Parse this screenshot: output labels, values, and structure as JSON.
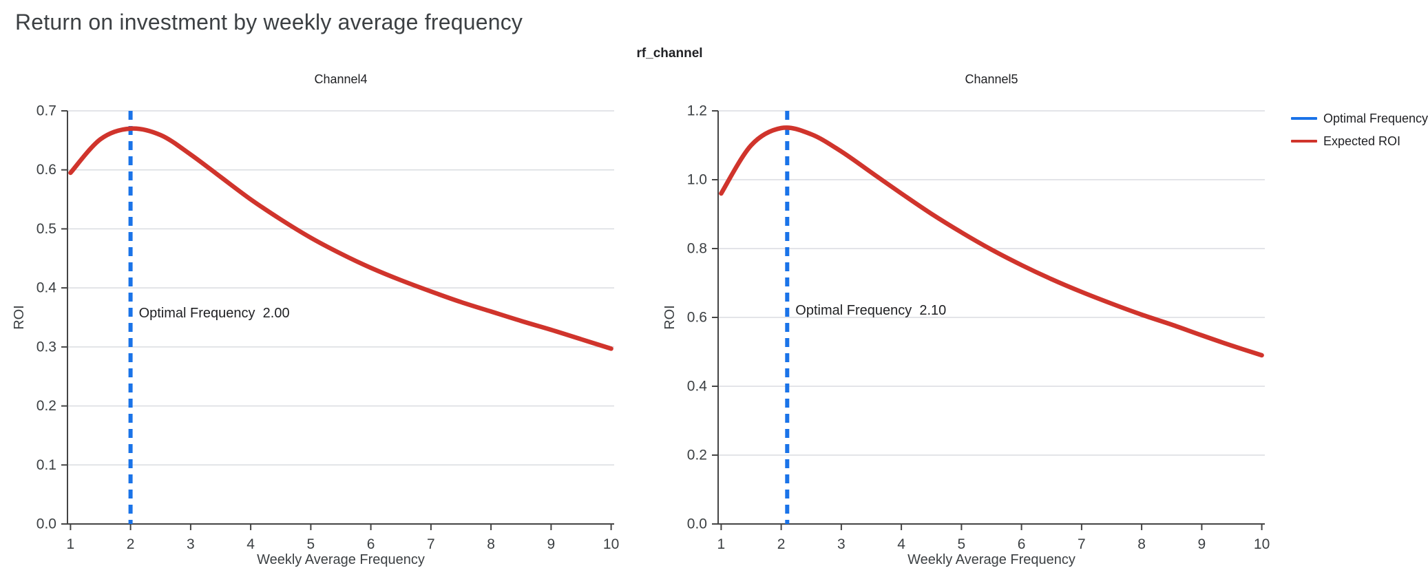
{
  "page": {
    "title": "Return on investment by weekly average frequency"
  },
  "chart_data": {
    "type": "line",
    "title": "rf_channel",
    "facet_by": "rf_channel",
    "legend_position": "right",
    "grid": "horizontal-only",
    "style": {
      "expected_roi_color": "#D0342C",
      "optimal_frequency_color": "#1A73E8",
      "grid_color": "#DADCE0",
      "axis_color": "#444444",
      "tick_text_color": "#3C4043",
      "annotation_text_color": "#202124"
    },
    "legend": [
      {
        "label": "Optimal Frequency",
        "color": "#1A73E8"
      },
      {
        "label": "Expected ROI",
        "color": "#D0342C"
      }
    ],
    "subplots": [
      {
        "title": "Channel4",
        "xlabel": "Weekly Average Frequency",
        "ylabel": "ROI",
        "xlim": [
          0.95,
          10.05
        ],
        "ylim": [
          0,
          0.7
        ],
        "xticks": [
          1,
          2,
          3,
          4,
          5,
          6,
          7,
          8,
          9,
          10
        ],
        "ytick_values": [
          0,
          0.1,
          0.2,
          0.3,
          0.4,
          0.5,
          0.6,
          0.7
        ],
        "ytick_labels": [
          "0.0",
          "0.1",
          "0.2",
          "0.3",
          "0.4",
          "0.5",
          "0.6",
          "0.7"
        ],
        "optimal_frequency": 2.0,
        "annotation": {
          "x": 2.0,
          "y": 0.357,
          "label": "Optimal Frequency",
          "value": "2.00"
        },
        "series": {
          "name": "Expected ROI",
          "x": [
            1,
            1.5,
            2,
            2.5,
            3,
            3.5,
            4,
            4.5,
            5,
            5.5,
            6,
            6.5,
            7,
            7.5,
            8,
            8.5,
            9,
            9.5,
            10
          ],
          "y": [
            0.595,
            0.652,
            0.67,
            0.659,
            0.626,
            0.588,
            0.55,
            0.516,
            0.485,
            0.458,
            0.434,
            0.413,
            0.394,
            0.376,
            0.36,
            0.344,
            0.329,
            0.313,
            0.297
          ]
        }
      },
      {
        "title": "Channel5",
        "xlabel": "Weekly Average Frequency",
        "ylabel": "ROI",
        "xlim": [
          0.95,
          10.05
        ],
        "ylim": [
          0,
          1.2
        ],
        "xticks": [
          1,
          2,
          3,
          4,
          5,
          6,
          7,
          8,
          9,
          10
        ],
        "ytick_values": [
          0,
          0.2,
          0.4,
          0.6,
          0.8,
          1.0,
          1.2
        ],
        "ytick_labels": [
          "0.0",
          "0.2",
          "0.4",
          "0.6",
          "0.8",
          "1.0",
          "1.2"
        ],
        "optimal_frequency": 2.1,
        "annotation": {
          "x": 2.1,
          "y": 0.62,
          "label": "Optimal Frequency",
          "value": "2.10"
        },
        "series": {
          "name": "Expected ROI",
          "x": [
            1,
            1.5,
            2,
            2.5,
            3,
            3.5,
            4,
            4.5,
            5,
            5.5,
            6,
            6.5,
            7,
            7.5,
            8,
            8.5,
            9,
            9.5,
            10
          ],
          "y": [
            0.96,
            1.1,
            1.15,
            1.132,
            1.082,
            1.021,
            0.96,
            0.901,
            0.847,
            0.797,
            0.752,
            0.711,
            0.674,
            0.64,
            0.608,
            0.579,
            0.548,
            0.518,
            0.49
          ]
        }
      }
    ]
  }
}
